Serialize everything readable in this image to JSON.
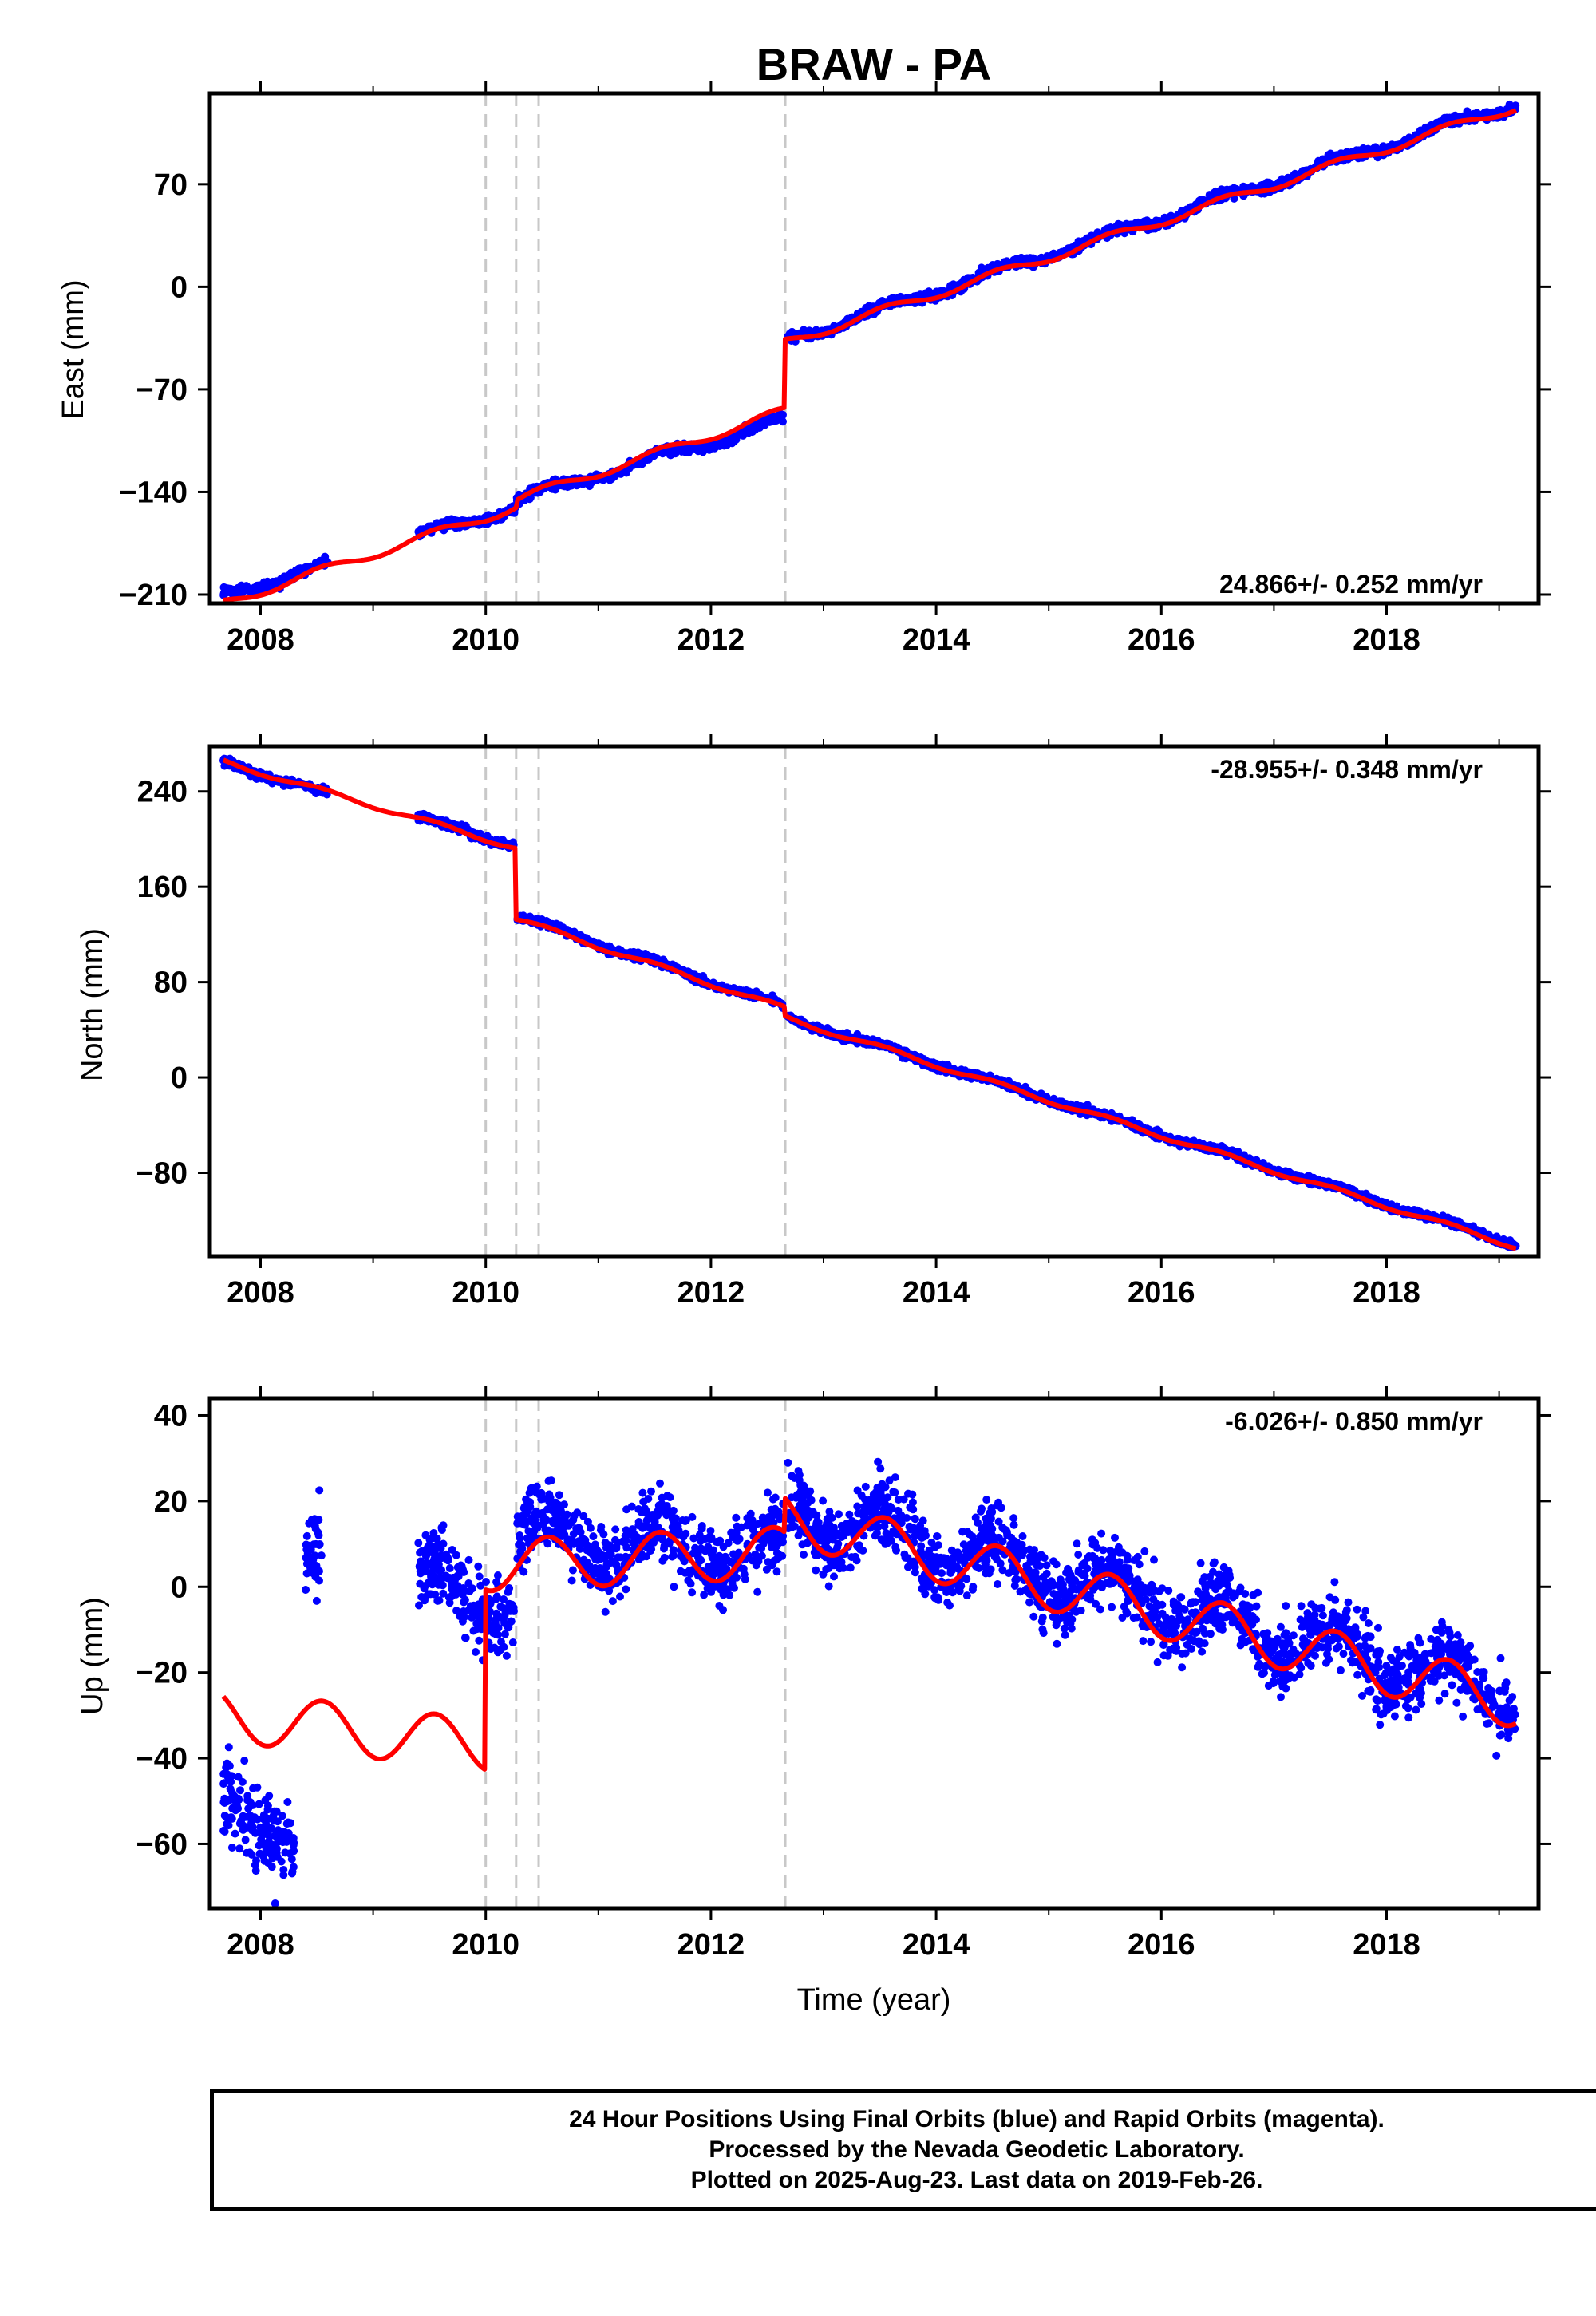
{
  "title": "BRAW - PA",
  "colors": {
    "data": "#0000ff",
    "model": "#ff0000",
    "event_line": "#c8c8c8",
    "axes": "#000000"
  },
  "footer": {
    "line1": "24 Hour Positions Using Final Orbits (blue) and Rapid Orbits (magenta).",
    "line2": "Processed by the Nevada Geodetic Laboratory.",
    "line3": "Plotted on 2025-Aug-23. Last data on 2019-Feb-26."
  },
  "chart_data": [
    {
      "type": "scatter",
      "component": "east",
      "ylabel": "East (mm)",
      "xlabel": "",
      "rate_label": "24.866+/- 0.252 mm/yr",
      "xlim": [
        2007.55,
        2019.35
      ],
      "ylim": [
        -216,
        132
      ],
      "xticks": [
        2008,
        2010,
        2012,
        2014,
        2016,
        2018
      ],
      "yticks": [
        -210,
        -140,
        -70,
        0,
        70
      ],
      "event_lines": [
        2010.0,
        2010.27,
        2010.47,
        2012.66
      ],
      "grid": false,
      "series": [
        {
          "segments": [
            {
              "x_start": 2007.67,
              "x_end": 2008.6,
              "y_start": -210,
              "y_end": -190,
              "seasonal_amp": 3
            },
            {
              "x_start": 2009.4,
              "x_end": 2012.64,
              "y_start": -165,
              "y_end": -91,
              "seasonal_amp": 3,
              "offsets": [
                {
                  "at": 2010.27,
                  "dy": 5
                }
              ]
            },
            {
              "x_start": 2012.68,
              "x_end": 2019.15,
              "y_start": -36,
              "y_end": 125,
              "seasonal_amp": 3
            }
          ]
        },
        {
          "segments": [
            {
              "x_start": 2007.67,
              "x_end": 2012.65,
              "y_start": -211,
              "y_end": -85,
              "seasonal_amp": 3,
              "offsets": [
                {
                  "at": 2010.27,
                  "dy": 5
                }
              ]
            },
            {
              "x_start": 2012.66,
              "x_end": 2019.15,
              "y_start": -38,
              "y_end": 123,
              "seasonal_amp": 3
            }
          ]
        }
      ]
    },
    {
      "type": "scatter",
      "component": "north",
      "ylabel": "North (mm)",
      "xlabel": "",
      "rate_label": "-28.955+/- 0.348 mm/yr",
      "xlim": [
        2007.55,
        2019.35
      ],
      "ylim": [
        -150,
        278
      ],
      "xticks": [
        2008,
        2010,
        2012,
        2014,
        2016,
        2018
      ],
      "yticks": [
        -80,
        0,
        80,
        160,
        240
      ],
      "event_lines": [
        2010.0,
        2010.27,
        2010.47,
        2012.66
      ],
      "grid": false,
      "series": [
        {
          "segments": [
            {
              "x_start": 2007.67,
              "x_end": 2008.6,
              "y_start": 265,
              "y_end": 238,
              "seasonal_amp": 2
            },
            {
              "x_start": 2009.4,
              "x_end": 2010.25,
              "y_start": 218,
              "y_end": 195,
              "seasonal_amp": 2
            },
            {
              "x_start": 2010.28,
              "x_end": 2012.64,
              "y_start": 135,
              "y_end": 60,
              "seasonal_amp": 2
            },
            {
              "x_start": 2012.68,
              "x_end": 2019.15,
              "y_start": 50,
              "y_end": -140,
              "seasonal_amp": 2
            }
          ]
        },
        {
          "segments": [
            {
              "x_start": 2007.67,
              "x_end": 2010.26,
              "y_start": 265,
              "y_end": 193,
              "seasonal_amp": 2
            },
            {
              "x_start": 2010.27,
              "x_end": 2012.65,
              "y_start": 133,
              "y_end": 58,
              "seasonal_amp": 2
            },
            {
              "x_start": 2012.66,
              "x_end": 2019.15,
              "y_start": 50,
              "y_end": -142,
              "seasonal_amp": 2
            }
          ]
        }
      ]
    },
    {
      "type": "scatter",
      "component": "up",
      "ylabel": "Up (mm)",
      "xlabel": "Time (year)",
      "rate_label": "-6.026+/- 0.850 mm/yr",
      "xlim": [
        2007.55,
        2019.35
      ],
      "ylim": [
        -75,
        44
      ],
      "xticks": [
        2008,
        2010,
        2012,
        2014,
        2016,
        2018
      ],
      "yticks": [
        -60,
        -40,
        -20,
        0,
        20,
        40
      ],
      "event_lines": [
        2010.0,
        2010.27,
        2010.47,
        2012.66
      ],
      "grid": false,
      "series": [
        {
          "segments": [
            {
              "x_start": 2007.67,
              "x_end": 2008.3,
              "y_start": -50,
              "y_end": -60,
              "seasonal_amp": 2,
              "noise": 7
            },
            {
              "x_start": 2008.4,
              "x_end": 2008.55,
              "y_start": 7,
              "y_end": 7,
              "seasonal_amp": 1,
              "noise": 6
            },
            {
              "x_start": 2009.4,
              "x_end": 2010.25,
              "y_start": 2,
              "y_end": -5,
              "seasonal_amp": 4,
              "noise": 6
            },
            {
              "x_start": 2010.28,
              "x_end": 2012.64,
              "y_start": 12,
              "y_end": 8,
              "seasonal_amp": 5,
              "noise": 6
            },
            {
              "x_start": 2012.68,
              "x_end": 2019.15,
              "y_start": 18,
              "y_end": -25,
              "seasonal_amp": 5,
              "noise": 6
            }
          ]
        },
        {
          "segments": [
            {
              "x_start": 2007.67,
              "x_end": 2009.99,
              "y_start": -30,
              "y_end": -37,
              "seasonal_amp": 6
            },
            {
              "x_start": 2010.0,
              "x_end": 2012.65,
              "y_start": 5,
              "y_end": 8,
              "seasonal_amp": 6
            },
            {
              "x_start": 2012.66,
              "x_end": 2019.15,
              "y_start": 16,
              "y_end": -27,
              "seasonal_amp": 6
            }
          ]
        }
      ]
    }
  ]
}
